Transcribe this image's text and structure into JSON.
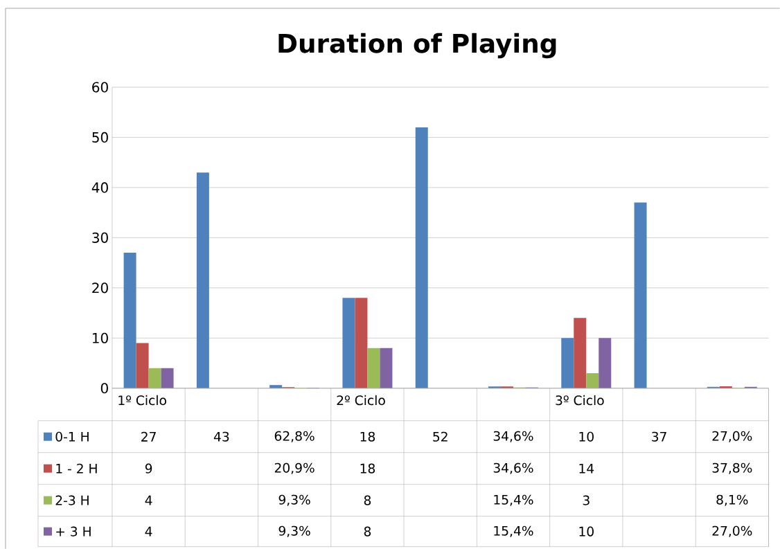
{
  "chart_data": {
    "type": "bar",
    "title": "Duration of Playing",
    "categories": [
      "1º Ciclo",
      null,
      null,
      "2º Ciclo",
      null,
      null,
      "3º Ciclo",
      null,
      null
    ],
    "series": [
      {
        "name": "0-1 H",
        "color": "#4f81bd",
        "values": [
          27,
          43,
          0.628,
          18,
          52,
          0.346,
          10,
          37,
          0.27
        ],
        "value_labels": [
          "27",
          "43",
          "62,8%",
          "18",
          "52",
          "34,6%",
          "10",
          "37",
          "27,0%"
        ]
      },
      {
        "name": "1 - 2 H",
        "color": "#c0504d",
        "values": [
          9,
          null,
          0.209,
          18,
          null,
          0.346,
          14,
          null,
          0.378
        ],
        "value_labels": [
          "9",
          null,
          "20,9%",
          "18",
          null,
          "34,6%",
          "14",
          null,
          "37,8%"
        ]
      },
      {
        "name": "2-3 H",
        "color": "#9bbb59",
        "values": [
          4,
          null,
          0.093,
          8,
          null,
          0.154,
          3,
          null,
          0.081
        ],
        "value_labels": [
          "4",
          null,
          "9,3%",
          "8",
          null,
          "15,4%",
          "3",
          null,
          "8,1%"
        ]
      },
      {
        "name": "+ 3 H",
        "color": "#8064a2",
        "values": [
          4,
          null,
          0.093,
          8,
          null,
          0.154,
          10,
          null,
          0.27
        ],
        "value_labels": [
          "4",
          null,
          "9,3%",
          "8",
          null,
          "15,4%",
          "10",
          null,
          "27,0%"
        ]
      }
    ],
    "ylim": [
      0,
      60
    ],
    "yticks": [
      0,
      10,
      20,
      30,
      40,
      50,
      60
    ],
    "grid": "y",
    "legend": "bottom left"
  }
}
